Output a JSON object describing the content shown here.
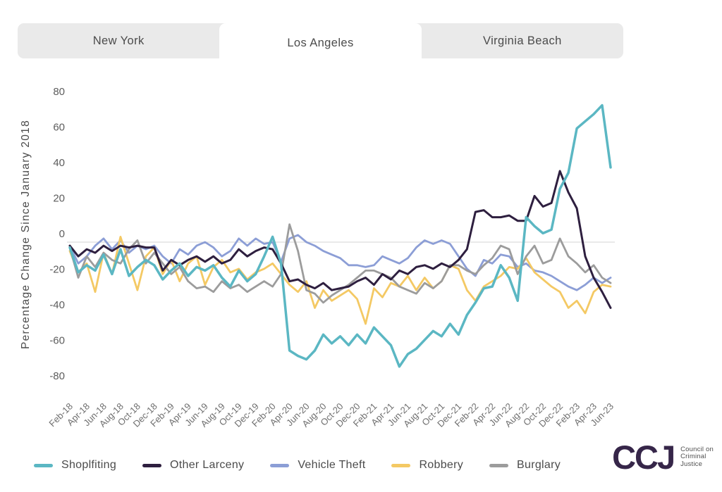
{
  "tabs": {
    "items": [
      {
        "label": "New York",
        "active": false
      },
      {
        "label": "Los Angeles",
        "active": true
      },
      {
        "label": "Virginia Beach",
        "active": false
      }
    ]
  },
  "chart_data": {
    "type": "line",
    "title": "",
    "ylabel": "Percentage Change Since January 2018",
    "xlabel": "",
    "ylim": [
      -80,
      80
    ],
    "yticks": [
      80,
      60,
      40,
      20,
      0,
      -20,
      -40,
      -60,
      -80
    ],
    "ytick_labels": [
      "80",
      "60",
      "40",
      "20",
      "0",
      "-20",
      "-40",
      "-60",
      "-80"
    ],
    "grid": "zero-line-only",
    "legend_position": "bottom",
    "x_start": "Feb-18",
    "x_end": "Jun-23",
    "x_interval": "monthly",
    "n_points": 65,
    "x_label_every": 2,
    "x_labels": [
      "Feb-18",
      "Apr-18",
      "Jun-18",
      "Aug-18",
      "Oct-18",
      "Dec-18",
      "Feb-19",
      "Apr-19",
      "Jun-19",
      "Aug-19",
      "Oct-19",
      "Dec-19",
      "Feb-20",
      "Apr-20",
      "Jun-20",
      "Aug-20",
      "Oct-20",
      "Dec-20",
      "Feb-21",
      "Apr-21",
      "Jun-21",
      "Aug-21",
      "Oct-21",
      "Dec-21",
      "Feb-22",
      "Apr-22",
      "Jun-22",
      "Aug-22",
      "Oct-22",
      "Dec-22",
      "Feb-23",
      "Apr-23",
      "Jun-23"
    ],
    "series": [
      {
        "name": "Shoplfiting",
        "color": "#5bb7c3",
        "width": 3.5,
        "values": [
          -3,
          -17,
          -13,
          -16,
          -7,
          -18,
          -4,
          -19,
          -14,
          -10,
          -13,
          -21,
          -16,
          -12,
          -19,
          -14,
          -16,
          -13,
          -20,
          -25,
          -16,
          -22,
          -18,
          -8,
          3,
          -12,
          -61,
          -64,
          -66,
          -61,
          -52,
          -57,
          -53,
          -58,
          -52,
          -57,
          -48,
          -53,
          -58,
          -70,
          -63,
          -60,
          -55,
          -50,
          -53,
          -46,
          -52,
          -41,
          -34,
          -26,
          -25,
          -13,
          -20,
          -33,
          14,
          9,
          5,
          7,
          30,
          39,
          64,
          68,
          72,
          77,
          42
        ]
      },
      {
        "name": "Other Larceny",
        "color": "#2e1f3f",
        "width": 3,
        "values": [
          -2,
          -8,
          -4,
          -6,
          -2,
          -5,
          -2,
          -3,
          -2,
          -3,
          -3,
          -16,
          -10,
          -13,
          -10,
          -8,
          -11,
          -8,
          -12,
          -10,
          -4,
          -8,
          -5,
          -3,
          -4,
          -12,
          -22,
          -21,
          -24,
          -26,
          -23,
          -27,
          -26,
          -25,
          -22,
          -20,
          -24,
          -18,
          -21,
          -16,
          -18,
          -14,
          -13,
          -15,
          -12,
          -14,
          -10,
          -4,
          17,
          18,
          14,
          14,
          15,
          12,
          12,
          26,
          20,
          22,
          40,
          28,
          19,
          -8,
          -20,
          -28,
          -37
        ]
      },
      {
        "name": "Vehicle Theft",
        "color": "#8c9ed6",
        "width": 2.8,
        "values": [
          -2,
          -12,
          -8,
          -2,
          2,
          -4,
          1,
          -6,
          -2,
          -4,
          -2,
          -8,
          -12,
          -4,
          -7,
          -2,
          0,
          -3,
          -8,
          -5,
          2,
          -2,
          2,
          -1,
          0,
          -11,
          2,
          4,
          0,
          -2,
          -5,
          -7,
          -9,
          -13,
          -13,
          -14,
          -13,
          -8,
          -10,
          -12,
          -9,
          -3,
          1,
          -1,
          1,
          -1,
          -8,
          -15,
          -19,
          -10,
          -12,
          -7,
          -8,
          -14,
          -12,
          -16,
          -17,
          -19,
          -22,
          -25,
          -27,
          -24,
          -20,
          -23,
          -20
        ]
      },
      {
        "name": "Robbery",
        "color": "#f4c964",
        "width": 2.8,
        "values": [
          -5,
          -17,
          -12,
          -28,
          -6,
          -18,
          3,
          -12,
          -27,
          -8,
          -3,
          -18,
          -10,
          -22,
          -12,
          -8,
          -24,
          -14,
          -10,
          -17,
          -15,
          -21,
          -17,
          -15,
          -12,
          -18,
          -24,
          -28,
          -22,
          -37,
          -27,
          -33,
          -30,
          -27,
          -32,
          -46,
          -26,
          -31,
          -23,
          -25,
          -19,
          -27,
          -20,
          -26,
          -22,
          -13,
          -15,
          -27,
          -33,
          -25,
          -22,
          -19,
          -14,
          -15,
          -9,
          -17,
          -21,
          -25,
          -28,
          -37,
          -33,
          -40,
          -28,
          -24,
          -25
        ]
      },
      {
        "name": "Burglary",
        "color": "#9c9c9c",
        "width": 2.8,
        "values": [
          -3,
          -20,
          -8,
          -14,
          -6,
          -10,
          -12,
          -4,
          1,
          -12,
          -6,
          -12,
          -18,
          -14,
          -22,
          -26,
          -25,
          -28,
          -22,
          -26,
          -24,
          -28,
          -25,
          -22,
          -25,
          -18,
          10,
          -5,
          -27,
          -29,
          -34,
          -30,
          -27,
          -24,
          -20,
          -16,
          -16,
          -18,
          -20,
          -25,
          -27,
          -29,
          -23,
          -26,
          -22,
          -13,
          -13,
          -16,
          -18,
          -13,
          -9,
          -2,
          -4,
          -18,
          -8,
          -2,
          -12,
          -10,
          2,
          -8,
          -12,
          -17,
          -13,
          -20,
          -23
        ]
      }
    ],
    "colors": {
      "zero_gridline": "#dcdcdc",
      "axis_text": "#5d5d5d",
      "x_tick_text": "#6e6e6e"
    }
  },
  "branding": {
    "logo_text": "CCJ",
    "logo_color": "#362649",
    "tagline_lines": [
      "Council on",
      "Criminal",
      "Justice"
    ]
  }
}
